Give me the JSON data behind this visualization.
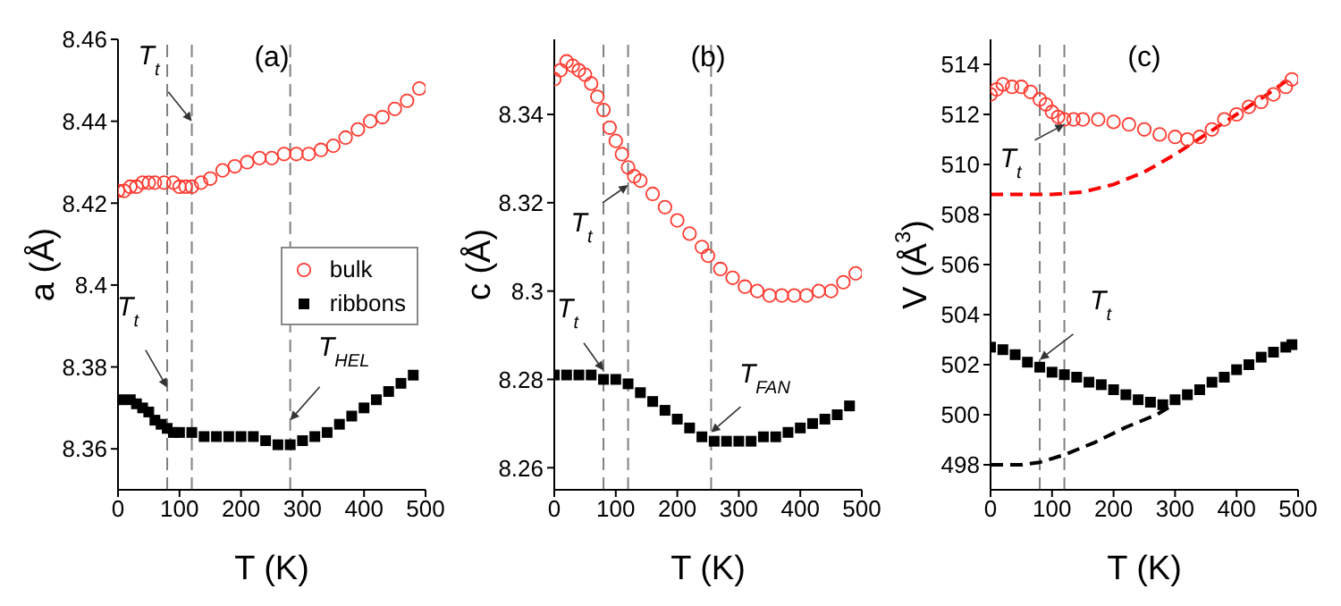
{
  "chart_data": [
    {
      "type": "scatter",
      "title": "(a)",
      "xlabel": "T (K)",
      "ylabel": "a (Å)",
      "xlim": [
        0,
        500
      ],
      "xticks": [
        0,
        100,
        200,
        300,
        400,
        500
      ],
      "ylim": [
        8.35,
        8.46
      ],
      "yticks": [
        8.36,
        8.38,
        8.4,
        8.42,
        8.44,
        8.46
      ],
      "legend": "right",
      "grid": false,
      "series": [
        {
          "name": "bulk",
          "color": "#ff3b30",
          "marker": "circle",
          "x": [
            0,
            10,
            20,
            30,
            40,
            50,
            60,
            75,
            90,
            100,
            110,
            120,
            135,
            150,
            170,
            190,
            210,
            230,
            250,
            270,
            290,
            310,
            330,
            350,
            370,
            390,
            410,
            430,
            450,
            470,
            490
          ],
          "values": [
            8.423,
            8.423,
            8.424,
            8.424,
            8.425,
            8.425,
            8.425,
            8.425,
            8.425,
            8.424,
            8.424,
            8.424,
            8.425,
            8.426,
            8.428,
            8.429,
            8.43,
            8.431,
            8.431,
            8.432,
            8.432,
            8.432,
            8.433,
            8.434,
            8.436,
            8.438,
            8.44,
            8.441,
            8.443,
            8.445,
            8.448
          ]
        },
        {
          "name": "ribbons",
          "color": "#000000",
          "marker": "square",
          "x": [
            4,
            20,
            30,
            40,
            50,
            60,
            70,
            80,
            90,
            100,
            120,
            140,
            160,
            180,
            200,
            220,
            240,
            260,
            280,
            300,
            320,
            340,
            360,
            380,
            400,
            420,
            440,
            460,
            480
          ],
          "values": [
            8.372,
            8.372,
            8.371,
            8.37,
            8.369,
            8.367,
            8.366,
            8.365,
            8.364,
            8.364,
            8.364,
            8.363,
            8.363,
            8.363,
            8.363,
            8.363,
            8.362,
            8.361,
            8.361,
            8.362,
            8.363,
            8.364,
            8.366,
            8.368,
            8.37,
            8.372,
            8.374,
            8.376,
            8.378
          ]
        }
      ],
      "ref_lines": [
        {
          "axis": "x",
          "value": 120,
          "color": "#808080",
          "line_style": "dashed"
        },
        {
          "axis": "x",
          "value": 80,
          "color": "#808080",
          "line_style": "dashed"
        },
        {
          "axis": "x",
          "value": 280,
          "color": "#808080",
          "line_style": "dashed"
        }
      ],
      "annotations": [
        {
          "text": "T$_{t}$",
          "x": 120,
          "y": 8.44
        },
        {
          "text": "T$_{t}$",
          "x": 80,
          "y": 8.375
        },
        {
          "text": "T$_{HEL}$",
          "x": 280,
          "y": 8.367
        }
      ]
    },
    {
      "type": "scatter",
      "title": "(b)",
      "xlabel": "T (K)",
      "ylabel": "c (Å)",
      "xlim": [
        0,
        500
      ],
      "xticks": [
        0,
        100,
        200,
        300,
        400,
        500
      ],
      "ylim": [
        8.255,
        8.357
      ],
      "yticks": [
        8.26,
        8.28,
        8.3,
        8.32,
        8.34
      ],
      "legend": false,
      "grid": false,
      "series": [
        {
          "color": "#ff3b30",
          "marker": "circle",
          "x": [
            0,
            10,
            20,
            30,
            40,
            50,
            60,
            70,
            80,
            90,
            100,
            110,
            120,
            130,
            140,
            160,
            180,
            200,
            220,
            240,
            250,
            270,
            290,
            310,
            330,
            350,
            370,
            390,
            410,
            430,
            450,
            470,
            490
          ],
          "values": [
            8.348,
            8.35,
            8.352,
            8.351,
            8.35,
            8.349,
            8.347,
            8.344,
            8.341,
            8.337,
            8.334,
            8.331,
            8.328,
            8.326,
            8.325,
            8.322,
            8.319,
            8.316,
            8.313,
            8.31,
            8.308,
            8.305,
            8.303,
            8.301,
            8.3,
            8.299,
            8.299,
            8.299,
            8.299,
            8.3,
            8.3,
            8.302,
            8.304
          ]
        },
        {
          "color": "#000000",
          "marker": "square",
          "x": [
            0,
            20,
            40,
            60,
            80,
            100,
            120,
            140,
            160,
            180,
            200,
            220,
            240,
            260,
            280,
            300,
            320,
            340,
            360,
            380,
            400,
            420,
            440,
            460,
            480
          ],
          "values": [
            8.281,
            8.281,
            8.281,
            8.281,
            8.28,
            8.28,
            8.279,
            8.277,
            8.275,
            8.273,
            8.271,
            8.269,
            8.267,
            8.266,
            8.266,
            8.266,
            8.266,
            8.267,
            8.267,
            8.268,
            8.269,
            8.27,
            8.271,
            8.272,
            8.274
          ]
        }
      ],
      "ref_lines": [
        {
          "axis": "x",
          "value": 120,
          "color": "#808080",
          "line_style": "dashed"
        },
        {
          "axis": "x",
          "value": 80,
          "color": "#808080",
          "line_style": "dashed"
        },
        {
          "axis": "x",
          "value": 255,
          "color": "#808080",
          "line_style": "dashed"
        }
      ],
      "annotations": [
        {
          "text": "T$_{t}$",
          "x": 120,
          "y": 8.324
        },
        {
          "text": "T$_{t}$",
          "x": 80,
          "y": 8.282
        },
        {
          "text": "T$_{FAN}$",
          "x": 255,
          "y": 8.268
        }
      ]
    },
    {
      "type": "scatter",
      "title": "(c)",
      "xlabel": "T (K)",
      "ylabel": "V (Å$^{3}$)",
      "xlim": [
        0,
        500
      ],
      "xticks": [
        0,
        100,
        200,
        300,
        400,
        500
      ],
      "ylim": [
        497,
        515
      ],
      "yticks": [
        498,
        500,
        502,
        504,
        506,
        508,
        510,
        512,
        514
      ],
      "legend": false,
      "grid": false,
      "series": [
        {
          "color": "#ff3b30",
          "marker": "circle",
          "x": [
            0,
            10,
            20,
            35,
            50,
            65,
            80,
            90,
            100,
            110,
            120,
            135,
            150,
            175,
            200,
            225,
            250,
            275,
            300,
            320,
            340,
            360,
            380,
            400,
            420,
            440,
            460,
            480,
            490
          ],
          "values": [
            512.8,
            513.0,
            513.2,
            513.1,
            513.1,
            512.9,
            512.6,
            512.4,
            512.1,
            511.9,
            511.8,
            511.8,
            511.8,
            511.8,
            511.7,
            511.6,
            511.4,
            511.2,
            511.1,
            511.0,
            511.1,
            511.4,
            511.8,
            512.0,
            512.3,
            512.5,
            512.8,
            513.1,
            513.4
          ]
        },
        {
          "color": "#000000",
          "marker": "square",
          "x": [
            0,
            20,
            40,
            60,
            80,
            100,
            120,
            140,
            160,
            180,
            200,
            220,
            240,
            260,
            280,
            300,
            320,
            340,
            360,
            380,
            400,
            420,
            440,
            460,
            480,
            490
          ],
          "values": [
            502.7,
            502.6,
            502.4,
            502.1,
            501.9,
            501.7,
            501.6,
            501.5,
            501.3,
            501.2,
            501.0,
            500.8,
            500.6,
            500.5,
            500.4,
            500.6,
            500.8,
            501.0,
            501.3,
            501.5,
            501.8,
            502.0,
            502.3,
            502.5,
            502.7,
            502.8
          ]
        },
        {
          "type": "line",
          "color": "#ff0000",
          "line_style": "dashed",
          "marker": "none",
          "x": [
            0,
            50,
            100,
            150,
            200,
            250,
            300,
            350,
            400,
            450,
            490
          ],
          "values": [
            508.8,
            508.8,
            508.8,
            508.9,
            509.2,
            509.7,
            510.4,
            511.2,
            512.0,
            512.8,
            513.5
          ]
        },
        {
          "type": "line",
          "color": "#000000",
          "line_style": "dashed",
          "marker": "none",
          "x": [
            0,
            50,
            80,
            120,
            170,
            220,
            270,
            290
          ],
          "values": [
            498.0,
            498.0,
            498.1,
            498.4,
            498.9,
            499.5,
            500.0,
            500.3
          ]
        }
      ],
      "ref_lines": [
        {
          "axis": "x",
          "value": 120,
          "color": "#808080",
          "line_style": "dashed"
        },
        {
          "axis": "x",
          "value": 80,
          "color": "#808080",
          "line_style": "dashed"
        }
      ],
      "annotations": [
        {
          "text": "T$_{t}$",
          "x": 120,
          "y": 511.6
        },
        {
          "text": "T$_{t}$",
          "x": 80,
          "y": 502.2
        }
      ]
    }
  ]
}
